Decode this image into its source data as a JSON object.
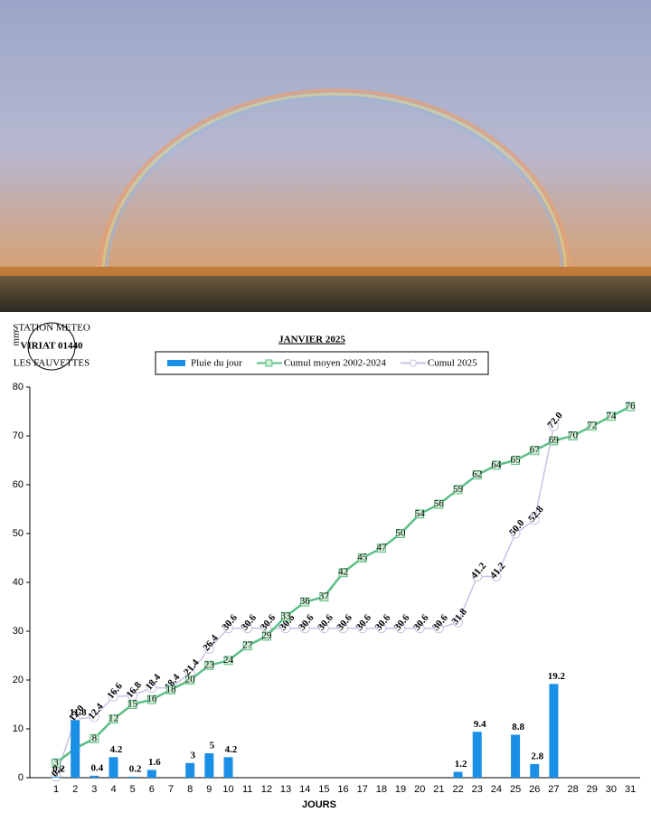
{
  "chart_data": {
    "type": "combo",
    "title": "JANVIER 2025",
    "y_label": "mm",
    "x_label": "JOURS",
    "logo": [
      "STATION METEO",
      "VIRIAT 01440",
      "LES FAUVETTES"
    ],
    "categories": [
      "1",
      "2",
      "3",
      "4",
      "5",
      "6",
      "7",
      "8",
      "9",
      "10",
      "11",
      "12",
      "13",
      "14",
      "15",
      "16",
      "17",
      "18",
      "19",
      "20",
      "21",
      "22",
      "23",
      "24",
      "25",
      "26",
      "27",
      "28",
      "29",
      "30",
      "31"
    ],
    "ylim": [
      0,
      80
    ],
    "yticks": [
      0,
      10,
      20,
      30,
      40,
      50,
      60,
      70,
      80
    ],
    "series": [
      {
        "name": "Pluie du jour",
        "type": "bar",
        "color": "#1a8fe6",
        "values": [
          0.2,
          11.8,
          0.4,
          4.2,
          0.2,
          1.6,
          null,
          3,
          5,
          4.2,
          null,
          null,
          null,
          null,
          null,
          null,
          null,
          null,
          null,
          null,
          null,
          1.2,
          9.4,
          null,
          8.8,
          2.8,
          19.2,
          null,
          null,
          null,
          null
        ]
      },
      {
        "name": "Cumul moyen 2002-2024",
        "type": "line",
        "color": "#5bbf86",
        "marker": "square",
        "values": [
          3,
          6,
          8,
          12,
          15,
          16,
          18,
          20,
          23,
          24,
          27,
          29,
          33,
          36,
          37,
          42,
          45,
          47,
          50,
          54,
          56,
          59,
          62,
          64,
          65,
          67,
          69,
          70,
          72,
          74,
          76
        ]
      },
      {
        "name": "Cumul 2025",
        "type": "line",
        "color": "#cdbfe6",
        "marker": "circle",
        "values": [
          0.2,
          12.0,
          12.4,
          16.6,
          16.8,
          18.4,
          18.4,
          21.4,
          26.4,
          30.6,
          30.6,
          30.6,
          30.6,
          30.6,
          30.6,
          30.6,
          30.6,
          30.6,
          30.6,
          30.6,
          30.6,
          31.8,
          41.2,
          41.2,
          50.0,
          52.8,
          72.0,
          null,
          null,
          null,
          null
        ],
        "value_labels": [
          "0.2",
          "12.0",
          "12.4",
          "16.6",
          "16.8",
          "18.4",
          "18.4",
          "21.4",
          "26.4",
          "30.6",
          "30.6",
          "30.6",
          "30.6",
          "30.6",
          "30.6",
          "30.6",
          "30.6",
          "30.6",
          "30.6",
          "30.6",
          "30.6",
          "31.8",
          "41.2",
          "41.2",
          "50.0",
          "52.8",
          "72.0",
          null,
          null,
          null,
          null
        ]
      }
    ]
  }
}
